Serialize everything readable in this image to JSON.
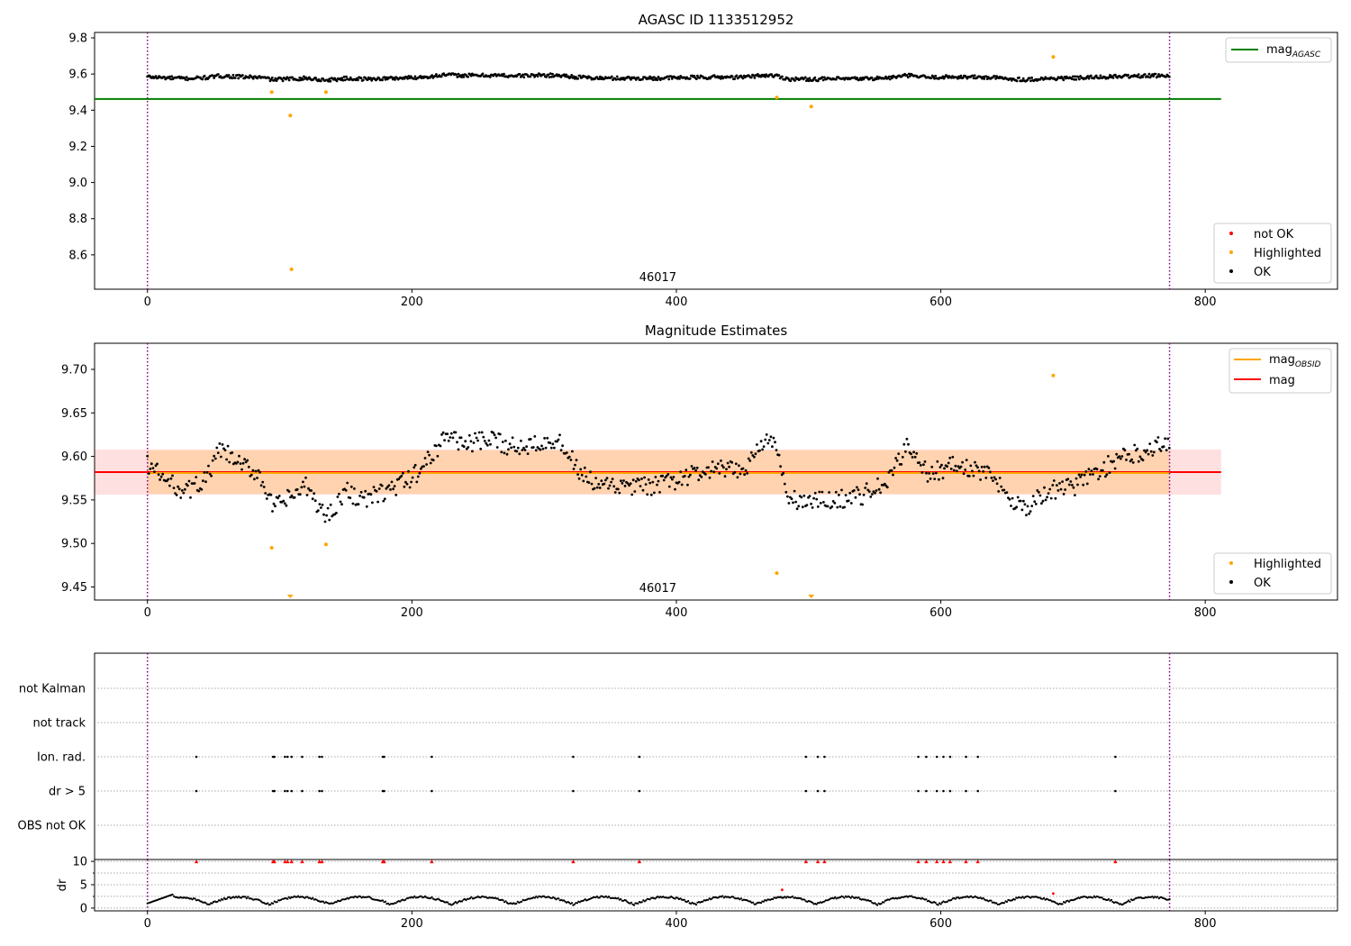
{
  "figure": {
    "background": "#ffffff"
  },
  "chart_data": [
    {
      "type": "scatter",
      "title": "AGASC ID 1133512952",
      "xlim": [
        -40,
        900
      ],
      "ylim": [
        8.41,
        9.83
      ],
      "x_ticks": [
        0,
        200,
        400,
        600,
        800
      ],
      "y_ticks": [
        8.6,
        8.8,
        9.0,
        9.2,
        9.4,
        9.6,
        9.8
      ],
      "y_tick_labels": [
        "8.6",
        "8.8",
        "9.0",
        "9.2",
        "9.4",
        "9.6",
        "9.8"
      ],
      "obsid_boundaries": [
        0,
        773
      ],
      "obsid_label": {
        "text": "46017",
        "x": 386
      },
      "reference_lines": [
        {
          "name": "mag_AGASC",
          "name_main": "mag",
          "name_sub": "AGASC",
          "y": 9.462,
          "x_range": [
            -40,
            812
          ],
          "color": "#008000"
        }
      ],
      "series": [
        {
          "name": "not OK",
          "color": "#ff0000",
          "points": []
        },
        {
          "name": "Highlighted",
          "color": "#ffa500",
          "points": [
            [
              94,
              9.5
            ],
            [
              108,
              9.37
            ],
            [
              109,
              8.52
            ],
            [
              135,
              9.5
            ],
            [
              476,
              9.47
            ],
            [
              502,
              9.42
            ],
            [
              685,
              9.695
            ]
          ]
        },
        {
          "name": "OK",
          "color": "#000000",
          "points": []
        }
      ],
      "legend": {
        "position": "upper-right and lower-right",
        "entries": [
          "mag_AGASC",
          "not OK",
          "Highlighted",
          "OK"
        ]
      }
    },
    {
      "type": "scatter",
      "title": "Magnitude Estimates",
      "xlim": [
        -40,
        900
      ],
      "ylim": [
        9.435,
        9.73
      ],
      "x_ticks": [
        0,
        200,
        400,
        600,
        800
      ],
      "y_ticks": [
        9.45,
        9.5,
        9.55,
        9.6,
        9.65,
        9.7
      ],
      "y_tick_labels": [
        "9.45",
        "9.50",
        "9.55",
        "9.60",
        "9.65",
        "9.70"
      ],
      "obsid_boundaries": [
        0,
        773
      ],
      "obsid_label": {
        "text": "46017",
        "x": 386
      },
      "mean_mag": {
        "name": "mag",
        "y": 9.582,
        "band": [
          9.556,
          9.608
        ],
        "x_range": [
          -40,
          812
        ],
        "color": "#ff0000"
      },
      "obsid_mag": {
        "name": "mag_OBSID",
        "name_main": "mag",
        "name_sub": "OBSID",
        "y": 9.581,
        "band": [
          9.557,
          9.607
        ],
        "x_range": [
          0,
          773
        ],
        "color": "#ffa500"
      },
      "series": [
        {
          "name": "Highlighted",
          "color": "#ffa500",
          "points": [
            [
              94,
              9.495
            ],
            [
              135,
              9.499
            ],
            [
              476,
              9.466
            ],
            [
              685,
              9.693
            ]
          ],
          "off_scale_below_x": [
            108,
            502
          ]
        },
        {
          "name": "OK",
          "color": "#000000",
          "points": []
        }
      ],
      "legend": {
        "position": "upper-right and lower-right",
        "entries": [
          "mag_OBSID",
          "mag",
          "Highlighted",
          "OK"
        ]
      }
    },
    {
      "type": "scatter",
      "title": "",
      "xlim": [
        -40,
        900
      ],
      "flag_rows": [
        "not Kalman",
        "not track",
        "Ion. rad.",
        "dr > 5",
        "OBS not OK"
      ],
      "flag_points": {
        "Ion. rad.": [
          37,
          95,
          96,
          104,
          106,
          109,
          117,
          130,
          132,
          178,
          179,
          215,
          322,
          372,
          498,
          507,
          512,
          583,
          589,
          597,
          602,
          607,
          619,
          628,
          732
        ],
        "dr > 5": [
          37,
          95,
          96,
          104,
          106,
          109,
          117,
          130,
          132,
          178,
          179,
          215,
          322,
          372,
          498,
          507,
          512,
          583,
          589,
          597,
          602,
          607,
          619,
          628,
          732
        ]
      },
      "obsid_boundaries": [
        0,
        773
      ]
    },
    {
      "type": "scatter",
      "title": "",
      "xlim": [
        -40,
        900
      ],
      "ylim": [
        -0.6,
        10.4
      ],
      "x_ticks": [
        0,
        200,
        400,
        600,
        800
      ],
      "y_ticks": [
        0,
        5,
        10
      ],
      "y_tick_labels": [
        "0",
        "5",
        "10"
      ],
      "ylabel": "dr",
      "clip_value": 10,
      "clipped_x": [
        37,
        95,
        96,
        104,
        106,
        109,
        117,
        130,
        132,
        178,
        179,
        215,
        322,
        372,
        498,
        507,
        512,
        583,
        589,
        597,
        602,
        607,
        619,
        628,
        732
      ],
      "red_points": [
        [
          480,
          3.9
        ],
        [
          685,
          3.1
        ]
      ],
      "obsid_boundaries": [
        0,
        773
      ]
    }
  ]
}
